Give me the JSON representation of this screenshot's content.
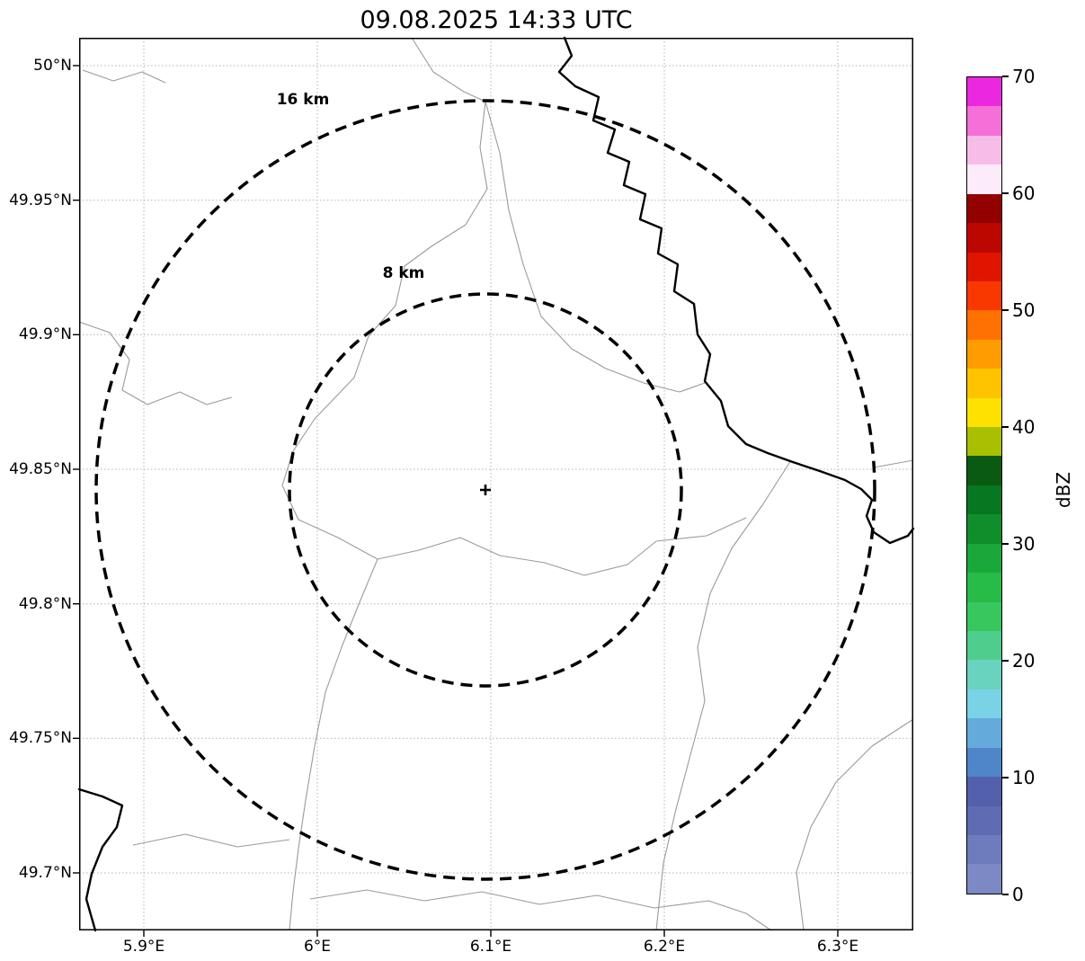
{
  "title": "09.08.2025 14:33 UTC",
  "map": {
    "range_rings": [
      {
        "label": "16 km",
        "radius_km": 16
      },
      {
        "label": "8 km",
        "radius_km": 8
      }
    ],
    "center_marker_symbol": "+",
    "boundary_color": "#9a9a9a",
    "border_color": "#000000"
  },
  "axes": {
    "x_tick_labels": [
      "5.9°E",
      "6°E",
      "6.1°E",
      "6.2°E",
      "6.3°E"
    ],
    "y_tick_labels": [
      "50°N",
      "49.95°N",
      "49.9°N",
      "49.85°N",
      "49.8°N",
      "49.75°N",
      "49.7°N"
    ]
  },
  "colorbar": {
    "label": "dBZ",
    "min": 0,
    "max": 70,
    "ticks": [
      0,
      10,
      20,
      30,
      40,
      50,
      60,
      70
    ],
    "colors_bottom_to_top": [
      "#7c89c4",
      "#6e7bbc",
      "#5f6cb3",
      "#5360ab",
      "#4f86c9",
      "#64aadb",
      "#79d2e6",
      "#69d3c0",
      "#4fcd8c",
      "#38c75f",
      "#27bc48",
      "#1aa83a",
      "#108e2c",
      "#087721",
      "#0a5a12",
      "#a8c000",
      "#ffe100",
      "#ffc300",
      "#ff9c00",
      "#ff7100",
      "#f93800",
      "#e01500",
      "#bc0700",
      "#930000",
      "#fcebf8",
      "#f8bce9",
      "#f470d8",
      "#ec27e0"
    ]
  },
  "chart_data": {
    "type": "heatmap",
    "subtype": "weather-radar-map",
    "title": "09.08.2025 14:33 UTC",
    "x_axis": {
      "tick_labels": [
        "5.9°E",
        "6°E",
        "6.1°E",
        "6.2°E",
        "6.3°E"
      ],
      "range_deg_e": [
        5.86,
        6.34
      ]
    },
    "y_axis": {
      "tick_labels": [
        "50°N",
        "49.95°N",
        "49.9°N",
        "49.85°N",
        "49.8°N",
        "49.75°N",
        "49.7°N"
      ],
      "range_deg_n": [
        49.68,
        50.01
      ]
    },
    "radar_center": {
      "lon_deg_e": 6.09,
      "lat_deg_n": 49.84
    },
    "range_rings_km": [
      8,
      16
    ],
    "colorbar": {
      "label": "dBZ",
      "min": 0,
      "max": 70,
      "tick_step": 10
    },
    "grid": true,
    "reflectivity_values": [],
    "note": "no reflectivity echoes visible on map at this time"
  }
}
